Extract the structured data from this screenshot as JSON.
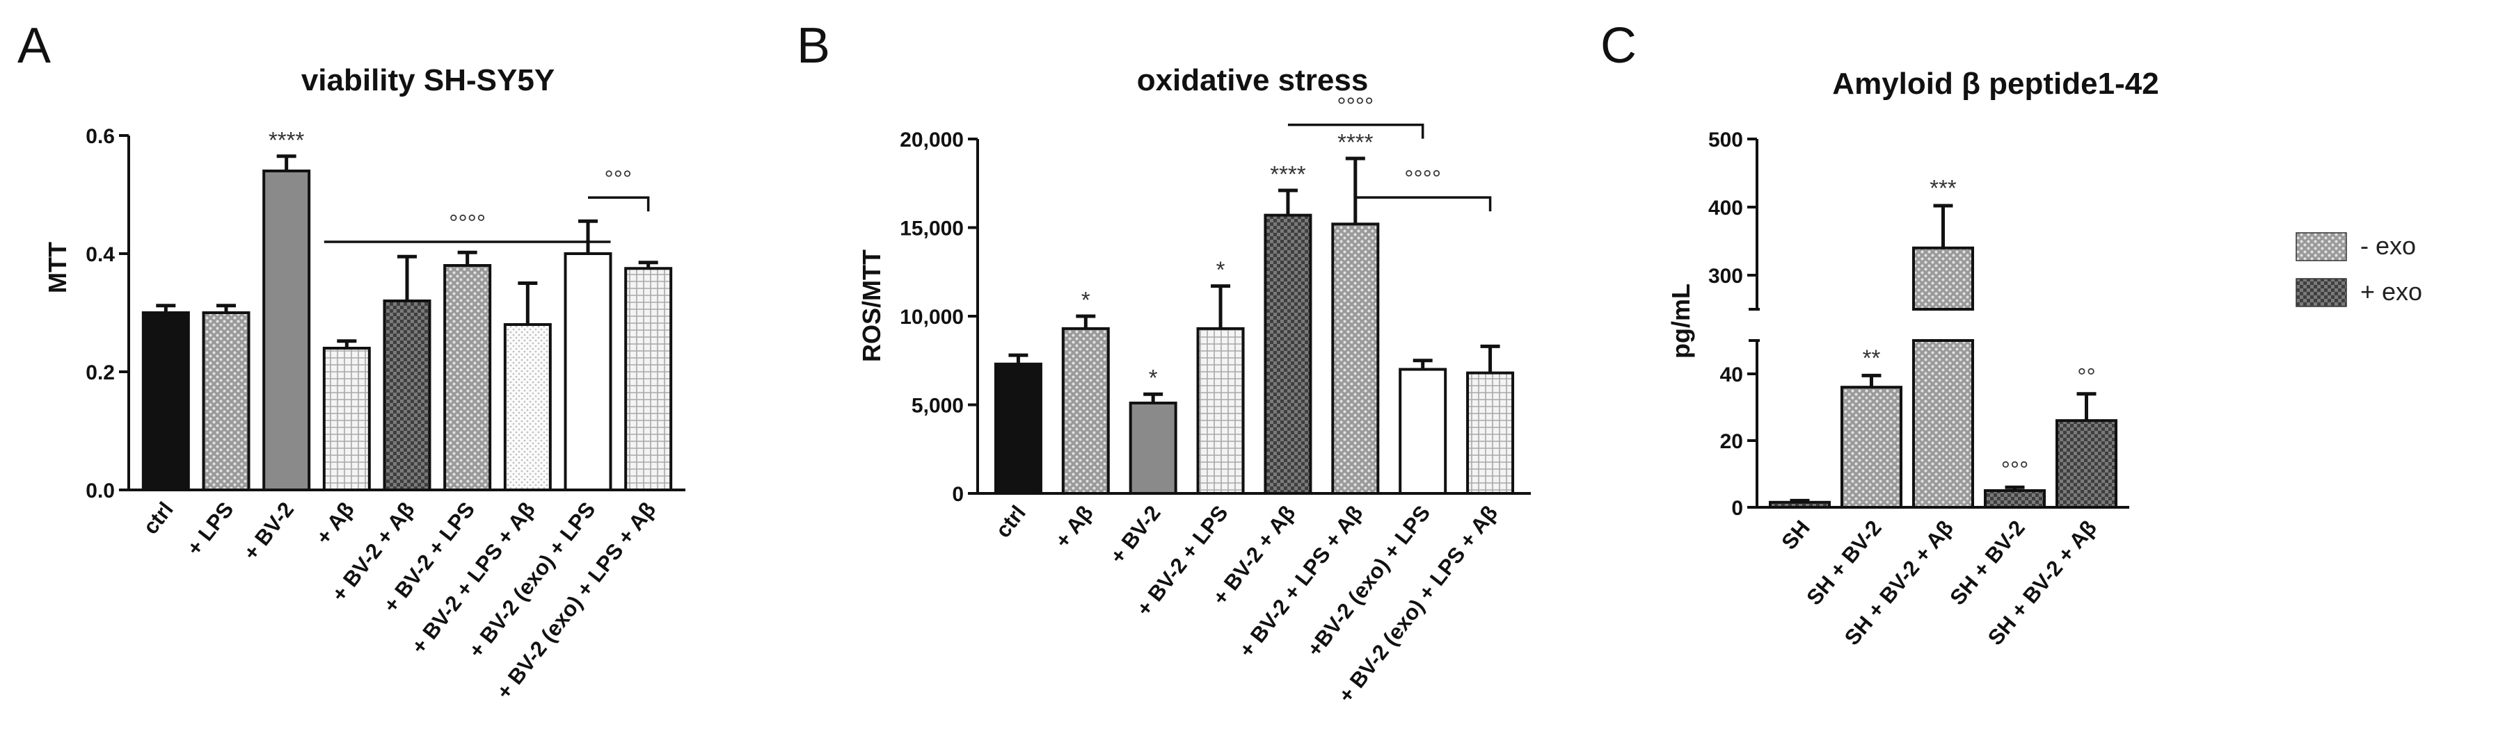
{
  "colors": {
    "ink": "#111111",
    "black": "#111111",
    "mid_gray": "#8a8a8a",
    "light_dots": "#e6e6e6",
    "dark_check": "#4a4a4a",
    "white": "#ffffff"
  },
  "chart_data": [
    {
      "type": "bar",
      "panel": "A",
      "title": "viability SH-SY5Y",
      "xlabel": "",
      "ylabel": "MTT",
      "ylim": [
        0,
        0.6
      ],
      "yticks": [
        "0.0",
        "0.2",
        "0.4",
        "0.6"
      ],
      "yticks_values": [
        0,
        0.2,
        0.4,
        0.6
      ],
      "categories": [
        "ctrl",
        "+ LPS",
        "+ BV-2",
        "+ Aβ",
        "+ BV-2 + Aβ",
        "+ BV-2 + LPS",
        "+ BV-2 + LPS + Aβ",
        "+ BV-2 (exo) + LPS",
        "+ BV-2 (exo) + LPS + Aβ"
      ],
      "values": [
        0.3,
        0.3,
        0.54,
        0.24,
        0.32,
        0.38,
        0.28,
        0.4,
        0.375
      ],
      "errors": [
        0.012,
        0.012,
        0.025,
        0.012,
        0.075,
        0.022,
        0.07,
        0.055,
        0.01
      ],
      "fills": [
        "black",
        "gray_dots",
        "gray_solid",
        "light_grid",
        "dark_check",
        "gray_dots",
        "light_dots",
        "white",
        "light_grid"
      ],
      "significance": [
        {
          "bar": 2,
          "label": "****"
        }
      ],
      "brackets": [
        {
          "from": 3,
          "to": 7,
          "label": "°°°°",
          "y": 0.42,
          "type": "line"
        },
        {
          "from": 7,
          "to": 8,
          "label": "°°°",
          "y": 0.495,
          "type": "bracket"
        }
      ]
    },
    {
      "type": "bar",
      "panel": "B",
      "title": "oxidative stress",
      "xlabel": "",
      "ylabel": "ROS/MTT",
      "ylim": [
        0,
        20000
      ],
      "yticks": [
        "0",
        "5,000",
        "10,000",
        "15,000",
        "20,000"
      ],
      "yticks_values": [
        0,
        5000,
        10000,
        15000,
        20000
      ],
      "categories": [
        "ctrl",
        "+ Aβ",
        "+ BV-2",
        "+ BV-2 + LPS",
        "+ BV-2 + Aβ",
        "+ BV-2 + LPS + Aβ",
        "+BV-2 (exo) + LPS",
        "+ BV-2 (exo) + LPS + Aβ"
      ],
      "values": [
        7300,
        9300,
        5100,
        9300,
        15700,
        15200,
        7000,
        6800
      ],
      "errors": [
        500,
        700,
        500,
        2400,
        1400,
        3700,
        500,
        1500
      ],
      "fills": [
        "black",
        "gray_dots",
        "gray_solid",
        "light_grid",
        "dark_check",
        "gray_dots",
        "white",
        "light_grid"
      ],
      "significance": [
        {
          "bar": 1,
          "label": "*"
        },
        {
          "bar": 2,
          "label": "*"
        },
        {
          "bar": 3,
          "label": "*"
        },
        {
          "bar": 4,
          "label": "****"
        },
        {
          "bar": 5,
          "label": "****"
        }
      ],
      "brackets": [
        {
          "from": 4,
          "to": 6,
          "label": "°°°°",
          "y": 20800,
          "type": "bracket"
        },
        {
          "from": 5,
          "to": 7,
          "label": "°°°°",
          "y": 16700,
          "type": "bracket"
        }
      ]
    },
    {
      "type": "bar",
      "panel": "C",
      "title": "Amyloid β peptide1-42",
      "xlabel": "",
      "ylabel": "pg/mL",
      "axis_break": true,
      "ylim_lower": [
        0,
        50
      ],
      "ylim_upper": [
        250,
        500
      ],
      "yticks_lower": [
        "0",
        "20",
        "40"
      ],
      "yticks_lower_values": [
        0,
        20,
        40
      ],
      "yticks_upper": [
        "300",
        "400",
        "500"
      ],
      "yticks_upper_values": [
        300,
        400,
        500
      ],
      "categories": [
        "SH",
        "SH + BV-2",
        "SH + BV-2 + Aβ",
        "SH + BV-2",
        "SH + BV-2 + Aβ"
      ],
      "values": [
        1.5,
        36,
        340,
        5,
        26
      ],
      "errors": [
        0.5,
        3.5,
        62,
        1,
        8
      ],
      "fills": [
        "dark_check",
        "gray_dots",
        "gray_dots",
        "dark_check",
        "dark_check"
      ],
      "significance": [
        {
          "bar": 1,
          "label": "**"
        },
        {
          "bar": 2,
          "label": "***"
        },
        {
          "bar": 3,
          "label": "°°°"
        },
        {
          "bar": 4,
          "label": "°°"
        }
      ],
      "legend": [
        {
          "label": "- exo",
          "fill": "gray_dots"
        },
        {
          "label": "+ exo",
          "fill": "dark_check"
        }
      ],
      "legend_position": "right"
    }
  ]
}
